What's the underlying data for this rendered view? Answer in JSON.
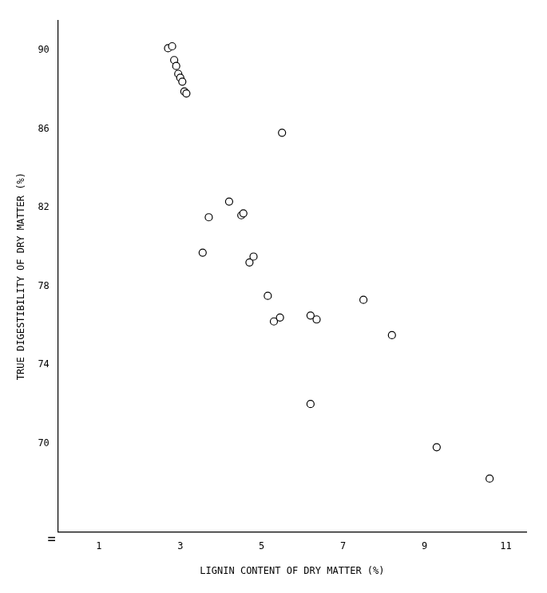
{
  "chart_data": {
    "type": "scatter",
    "x": [
      2.7,
      2.8,
      2.85,
      2.9,
      2.95,
      3.0,
      3.05,
      3.1,
      3.15,
      3.55,
      3.7,
      4.2,
      4.5,
      4.55,
      4.7,
      4.8,
      5.15,
      5.3,
      5.45,
      5.5,
      6.2,
      6.35,
      7.5,
      8.2,
      6.2,
      9.3,
      10.6
    ],
    "values": [
      90.1,
      90.2,
      89.5,
      89.2,
      88.8,
      88.6,
      88.4,
      87.9,
      87.8,
      79.7,
      81.5,
      82.3,
      81.6,
      81.7,
      79.2,
      79.5,
      77.5,
      76.2,
      76.4,
      85.8,
      76.5,
      76.3,
      77.3,
      75.5,
      72.0,
      69.8,
      68.2
    ],
    "x_label": "LIGNIN CONTENT OF DRY MATTER (%)",
    "y_label": "TRUE DIGESTIBILITY OF DRY MATTER (%)",
    "xlim": [
      0,
      11.5
    ],
    "ylim": [
      65.5,
      91.5
    ],
    "xticks": [
      1,
      3,
      5,
      7,
      9,
      11
    ],
    "yticks": [
      70,
      74,
      78,
      82,
      86,
      90
    ],
    "color": "#000000",
    "marker": "open_circle",
    "grid": false,
    "annotations": [
      {
        "text": "=",
        "x": 0,
        "y": 65.5
      }
    ]
  }
}
